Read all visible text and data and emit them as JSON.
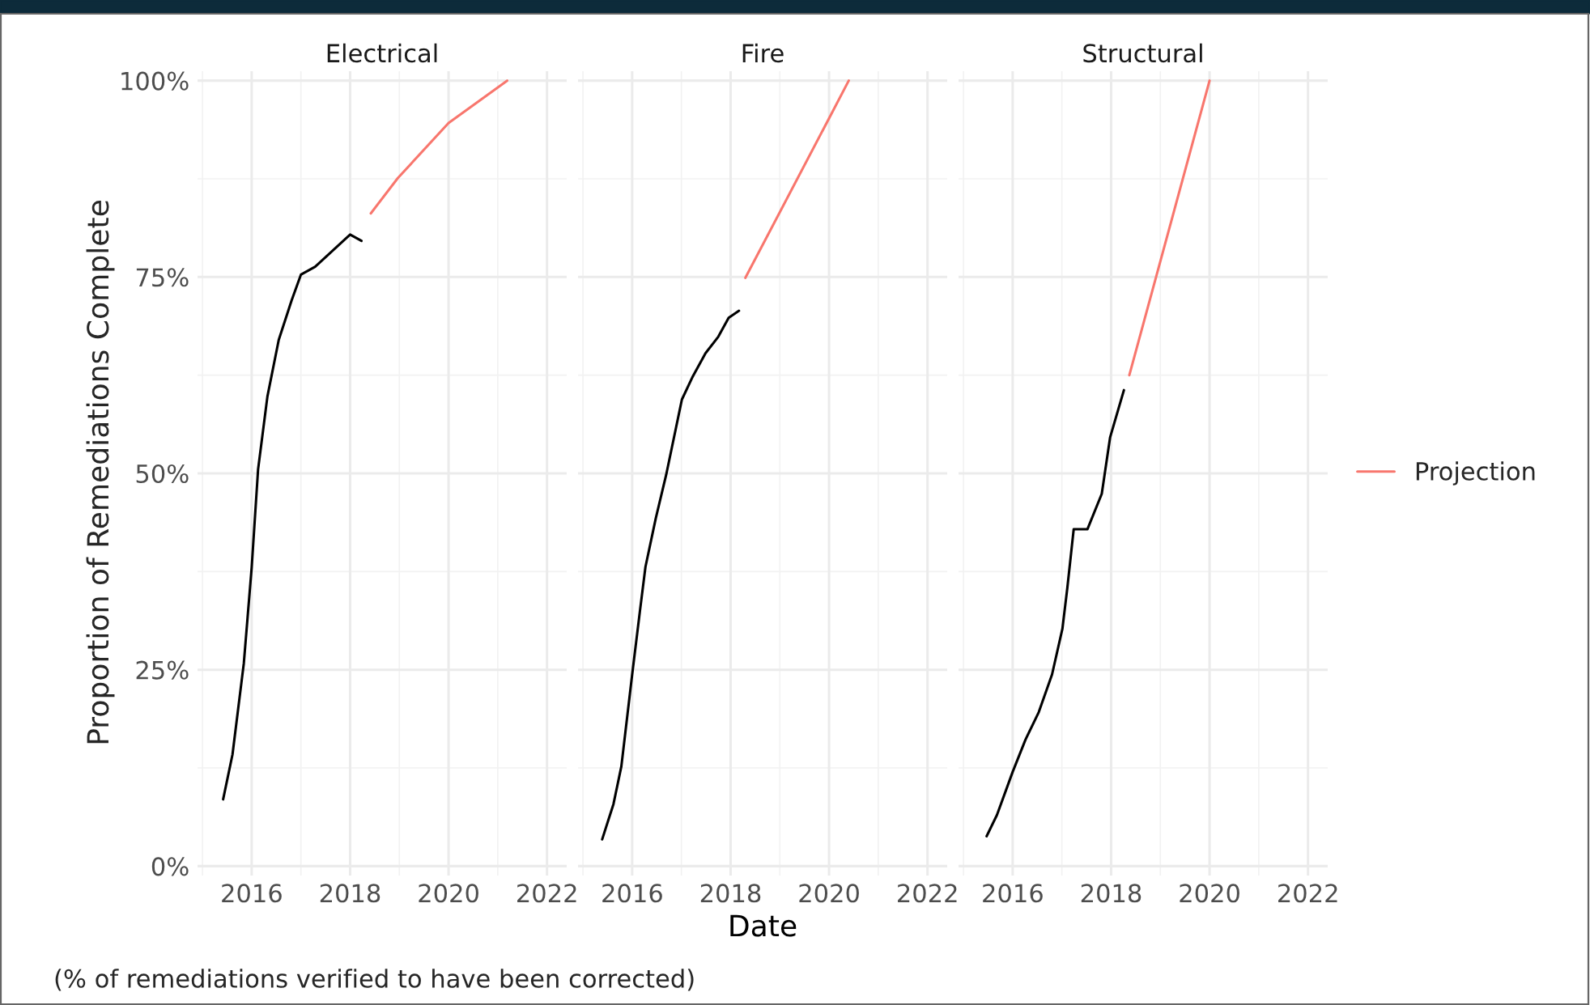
{
  "chart_data": [
    {
      "type": "line",
      "title": "Electrical",
      "ylabel": "Proportion of Remediations Complete",
      "annotations": [
        "(% of remediations verified to have been corrected)"
      ],
      "xlim": [
        2014.9,
        2022.4
      ],
      "xticks": [
        2016,
        2018,
        2020,
        2022
      ],
      "ylim": [
        -1.2,
        101.2
      ],
      "yticks": [
        {
          "value": 0,
          "label": "0%"
        },
        {
          "value": 25,
          "label": "25%"
        },
        {
          "value": 50,
          "label": "50%"
        },
        {
          "value": 75,
          "label": "75%"
        },
        {
          "value": 100,
          "label": "100%"
        }
      ],
      "grid": true,
      "series": [
        {
          "color": "#000000",
          "x": [
            2015.42,
            2015.61,
            2015.84,
            2016.0,
            2016.13,
            2016.32,
            2016.55,
            2016.81,
            2017.0,
            2017.29,
            2018.0,
            2018.23
          ],
          "values": [
            8.5,
            14.2,
            25.8,
            38,
            50.5,
            59.8,
            67,
            72,
            75.3,
            76.3,
            80.4,
            79.6
          ]
        },
        {
          "color": "#f8766d",
          "x": [
            2018.42,
            2018.97,
            2020.0,
            2021.19
          ],
          "values": [
            83.1,
            87.6,
            94.6,
            100
          ]
        }
      ]
    },
    {
      "type": "line",
      "title": "Fire",
      "xlabel": "Date",
      "tick_labels": "x",
      "xlim": [
        2014.9,
        2022.4
      ],
      "xticks": [
        2016,
        2018,
        2020,
        2022
      ],
      "ylim": [
        -1.2,
        101.2
      ],
      "yticks": [
        0,
        25,
        50,
        75,
        100
      ],
      "grid": true,
      "series": [
        {
          "color": "#000000",
          "x": [
            2015.39,
            2015.62,
            2015.78,
            2016.0,
            2016.16,
            2016.27,
            2016.48,
            2016.69,
            2017.01,
            2017.22,
            2017.49,
            2017.75,
            2017.96,
            2018.17
          ],
          "values": [
            3.4,
            7.9,
            12.7,
            24.4,
            32.6,
            38.1,
            44.3,
            49.8,
            59.4,
            62.2,
            65.3,
            67.4,
            69.8,
            70.7
          ]
        },
        {
          "color": "#f8766d",
          "x": [
            2018.3,
            2020.0,
            2020.4
          ],
          "values": [
            74.9,
            95.2,
            100
          ]
        }
      ]
    },
    {
      "type": "line",
      "title": "Structural",
      "tick_labels": "x",
      "legend": "right",
      "xlim": [
        2014.9,
        2022.4
      ],
      "xticks": [
        2016,
        2018,
        2020,
        2022
      ],
      "ylim": [
        -1.2,
        101.2
      ],
      "yticks": [
        0,
        25,
        50,
        75,
        100
      ],
      "grid": true,
      "series": [
        {
          "color": "#000000",
          "x": [
            2015.47,
            2015.68,
            2016.0,
            2016.26,
            2016.53,
            2016.8,
            2017.01,
            2017.11,
            2017.24,
            2017.52,
            2017.81,
            2017.98,
            2018.26
          ],
          "values": [
            3.8,
            6.5,
            12,
            16.1,
            19.6,
            24.4,
            30.2,
            35.4,
            42.9,
            42.9,
            47.4,
            54.6,
            60.6
          ]
        },
        {
          "name": "Projection",
          "color": "#f8766d",
          "x": [
            2018.37,
            2020.0
          ],
          "values": [
            62.5,
            100
          ]
        }
      ]
    }
  ]
}
